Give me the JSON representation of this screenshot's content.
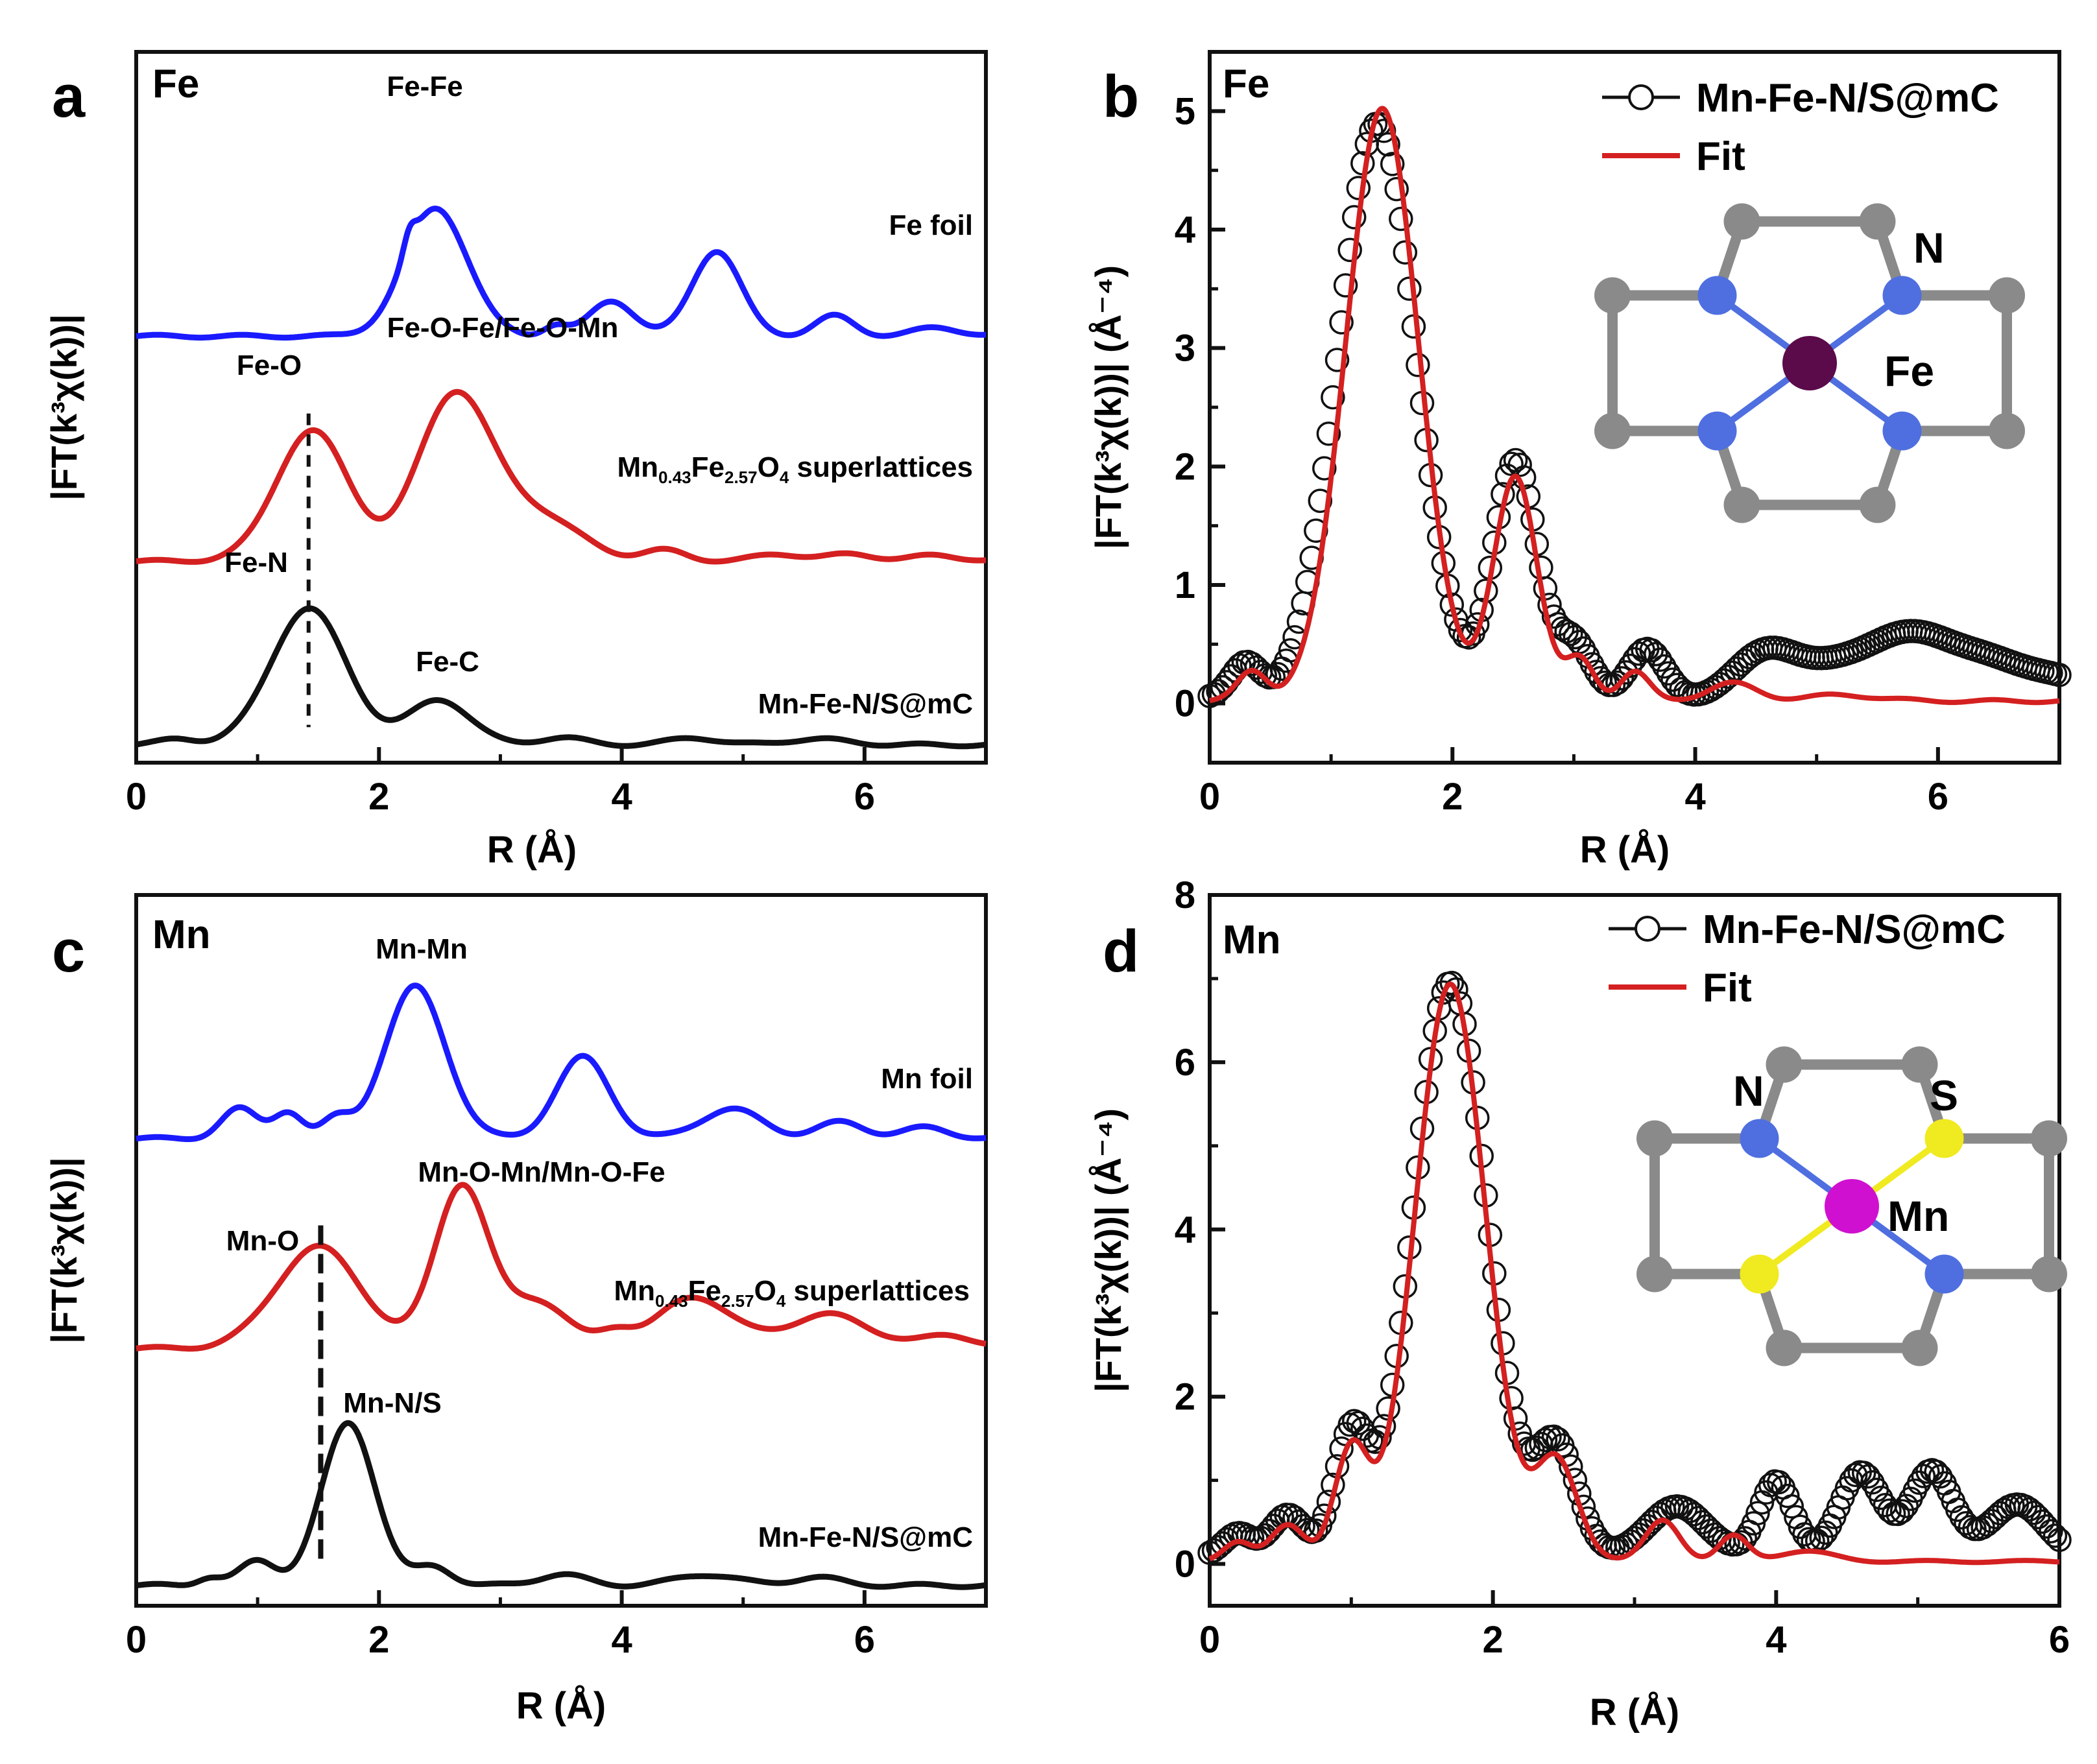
{
  "colors": {
    "blue": "#1a1aff",
    "red": "#d42020",
    "black": "#111111",
    "grey": "#8a8a8a",
    "fe_atom": "#5b0a4a",
    "n_atom": "#4f6fe0",
    "s_atom": "#f0ea20",
    "mn_atom": "#d010d0"
  },
  "chart_data": [
    {
      "id": "a",
      "type": "line",
      "panel_label": "a",
      "element_label": "Fe",
      "xlabel": "R (Å)",
      "ylabel": "|FT(k³χ(k))|",
      "xlim": [
        0,
        7
      ],
      "xticks": [
        "0",
        "2",
        "4",
        "6"
      ],
      "series": [
        {
          "name": "Fe foil",
          "label": "Fe foil",
          "color": "#1a1aff",
          "offset": 3.6,
          "peaks": [
            [
              2.25,
              0.15,
              0.05
            ],
            [
              2.47,
              1.08,
              0.26
            ],
            [
              3.45,
              0.09,
              0.1
            ],
            [
              3.92,
              0.3,
              0.18
            ],
            [
              4.78,
              0.72,
              0.2
            ],
            [
              5.75,
              0.17,
              0.16
            ],
            [
              6.6,
              0.07,
              0.2
            ]
          ]
        },
        {
          "name": "Mn0.43Fe2.57O4 superlattices",
          "label_main": "Mn",
          "label_sub1": "0.43",
          "label_mid": "Fe",
          "label_sub2": "2.57",
          "label_end": "O",
          "label_sub3": "4",
          "label_tail": " superlattices",
          "color": "#d42020",
          "offset": 1.7,
          "peaks": [
            [
              1.45,
              1.1,
              0.3
            ],
            [
              2.62,
              1.38,
              0.3
            ],
            [
              3.3,
              0.38,
              0.35
            ],
            [
              4.35,
              0.09,
              0.18
            ],
            [
              5.3,
              0.06,
              0.2
            ],
            [
              5.9,
              0.06,
              0.2
            ],
            [
              6.6,
              0.05,
              0.2
            ]
          ]
        },
        {
          "name": "Mn-Fe-N/S@mC",
          "label": "Mn-Fe-N/S@mC",
          "color": "#111111",
          "offset": 0.15,
          "peaks": [
            [
              0.35,
              0.05,
              0.15
            ],
            [
              1.42,
              1.15,
              0.31
            ],
            [
              2.5,
              0.38,
              0.25
            ],
            [
              3.5,
              0.06,
              0.2
            ],
            [
              4.6,
              0.06,
              0.2
            ],
            [
              5.6,
              0.05,
              0.25
            ]
          ]
        }
      ],
      "annotations": [
        {
          "text": "Fe-Fe",
          "x": 2.35,
          "series": 0
        },
        {
          "text": "Fe-O-Fe/Fe-O-Mn",
          "x": 2.9,
          "series": 1
        },
        {
          "text": "Fe-O",
          "x": 1.1,
          "series": 1
        },
        {
          "text": "Fe-N",
          "x": 1.0,
          "series": 2
        },
        {
          "text": "Fe-C",
          "x": 2.55,
          "series": 2
        }
      ],
      "dashed_x": 1.42
    },
    {
      "id": "b",
      "type": "line",
      "panel_label": "b",
      "element_label": "Fe",
      "xlabel": "R (Å)",
      "ylabel": "|FT(k³χ(k))| (Å⁻⁴)",
      "xlim": [
        0,
        7
      ],
      "ylim": [
        -0.5,
        5.5
      ],
      "xticks": [
        "0",
        "2",
        "4",
        "6"
      ],
      "yticks": [
        "0",
        "1",
        "2",
        "3",
        "4",
        "5"
      ],
      "legend": [
        "Mn-Fe-N/S@mC",
        "Fit"
      ],
      "series": [
        {
          "name": "Mn-Fe-N/S@mC",
          "style": "open-circles",
          "peaks": [
            [
              0.3,
              0.28,
              0.12
            ],
            [
              1.38,
              4.85,
              0.32
            ],
            [
              2.52,
              2.0,
              0.18
            ],
            [
              3.0,
              0.45,
              0.15
            ],
            [
              3.6,
              0.4,
              0.15
            ],
            [
              4.6,
              0.35,
              0.25
            ],
            [
              5.8,
              0.55,
              0.6
            ],
            [
              6.9,
              0.12,
              0.3
            ]
          ],
          "baseline": 0.05
        },
        {
          "name": "Fit",
          "style": "line",
          "color": "#d42020",
          "peaks": [
            [
              0.35,
              0.25,
              0.12
            ],
            [
              1.42,
              5.0,
              0.3
            ],
            [
              2.52,
              1.9,
              0.18
            ],
            [
              3.05,
              0.35,
              0.12
            ],
            [
              3.5,
              0.25,
              0.12
            ],
            [
              4.3,
              0.15,
              0.2
            ],
            [
              5.2,
              0.05,
              0.3
            ]
          ],
          "baseline": 0.02
        }
      ],
      "structure": {
        "center": "Fe",
        "labels": [
          "N",
          "Fe"
        ]
      }
    },
    {
      "id": "c",
      "type": "line",
      "panel_label": "c",
      "element_label": "Mn",
      "xlabel": "R (Å)",
      "ylabel": "|FT(k³χ(k))|",
      "xlim": [
        0,
        7
      ],
      "xticks": [
        "0",
        "2",
        "4",
        "6"
      ],
      "series": [
        {
          "name": "Mn foil",
          "label": "Mn foil",
          "color": "#1a1aff",
          "offset": 3.45,
          "peaks": [
            [
              0.85,
              0.22,
              0.15
            ],
            [
              1.25,
              0.2,
              0.12
            ],
            [
              1.65,
              0.14,
              0.12
            ],
            [
              2.3,
              1.12,
              0.25
            ],
            [
              3.68,
              0.6,
              0.22
            ],
            [
              4.9,
              0.22,
              0.25
            ],
            [
              5.8,
              0.12,
              0.2
            ],
            [
              6.5,
              0.08,
              0.2
            ]
          ]
        },
        {
          "name": "Mn0.43Fe2.57O4 superlattices",
          "label_main": "Mn",
          "label_sub1": "0.43",
          "label_mid": "Fe",
          "label_sub2": "2.57",
          "label_end": "O",
          "label_sub3": "4",
          "label_tail": " superlattices",
          "color": "#d42020",
          "offset": 1.9,
          "peaks": [
            [
              1.5,
              0.75,
              0.35
            ],
            [
              2.68,
              1.2,
              0.22
            ],
            [
              3.3,
              0.35,
              0.25
            ],
            [
              3.95,
              0.12,
              0.15
            ],
            [
              4.6,
              0.38,
              0.3
            ],
            [
              5.7,
              0.25,
              0.35
            ],
            [
              6.7,
              0.1,
              0.2
            ]
          ]
        },
        {
          "name": "Mn-Fe-N/S@mC",
          "label": "Mn-Fe-N/S@mC",
          "color": "#111111",
          "offset": 0.15,
          "peaks": [
            [
              0.6,
              0.06,
              0.1
            ],
            [
              1.0,
              0.18,
              0.15
            ],
            [
              1.75,
              1.2,
              0.22
            ],
            [
              2.45,
              0.14,
              0.15
            ],
            [
              3.5,
              0.08,
              0.2
            ],
            [
              4.7,
              0.08,
              0.25
            ],
            [
              5.6,
              0.06,
              0.2
            ]
          ]
        }
      ],
      "annotations": [
        {
          "text": "Mn-Mn",
          "x": 2.3,
          "series": 0
        },
        {
          "text": "Mn-O-Mn/Mn-O-Fe",
          "x": 2.9,
          "series": 1
        },
        {
          "text": "Mn-O",
          "x": 1.0,
          "series": 1
        },
        {
          "text": "Mn-N/S",
          "x": 2.05,
          "series": 2
        }
      ],
      "dashed_x": 1.52
    },
    {
      "id": "d",
      "type": "line",
      "panel_label": "d",
      "element_label": "Mn",
      "xlabel": "R (Å)",
      "ylabel": "|FT(k³χ(k))| (Å⁻⁴)",
      "xlim": [
        0,
        6
      ],
      "ylim": [
        -0.5,
        8
      ],
      "xticks": [
        "0",
        "2",
        "4",
        "6"
      ],
      "yticks": [
        "0",
        "2",
        "4",
        "6",
        "8"
      ],
      "legend": [
        "Mn-Fe-N/S@mC",
        "Fit"
      ],
      "series": [
        {
          "name": "Mn-Fe-N/S@mC",
          "style": "open-circles",
          "peaks": [
            [
              0.2,
              0.25,
              0.1
            ],
            [
              0.55,
              0.5,
              0.12
            ],
            [
              1.0,
              1.4,
              0.12
            ],
            [
              1.7,
              6.85,
              0.26
            ],
            [
              2.45,
              1.3,
              0.15
            ],
            [
              3.3,
              0.6,
              0.2
            ],
            [
              4.0,
              0.9,
              0.12
            ],
            [
              4.6,
              1.0,
              0.15
            ],
            [
              5.1,
              1.0,
              0.15
            ],
            [
              5.7,
              0.6,
              0.2
            ]
          ],
          "baseline": 0.1
        },
        {
          "name": "Fit",
          "style": "line",
          "color": "#d42020",
          "peaks": [
            [
              0.2,
              0.22,
              0.1
            ],
            [
              0.55,
              0.45,
              0.12
            ],
            [
              1.0,
              1.3,
              0.12
            ],
            [
              1.7,
              6.9,
              0.25
            ],
            [
              2.45,
              1.2,
              0.15
            ],
            [
              3.2,
              0.5,
              0.12
            ],
            [
              3.7,
              0.3,
              0.1
            ],
            [
              4.2,
              0.12,
              0.2
            ]
          ],
          "baseline": 0.03
        }
      ],
      "structure": {
        "center": "Mn",
        "labels": [
          "N",
          "S",
          "Mn"
        ]
      }
    }
  ]
}
